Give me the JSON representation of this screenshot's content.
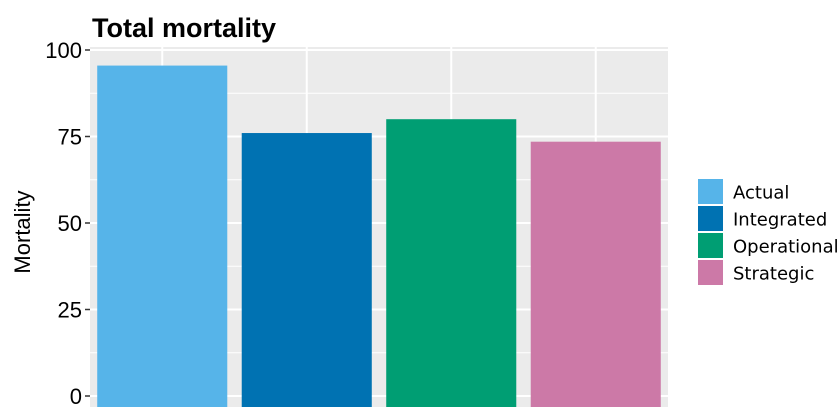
{
  "chart_data": {
    "type": "bar",
    "title": "Total mortality",
    "xlabel": "",
    "ylabel": "Mortality",
    "categories": [
      "Actual",
      "Integrated",
      "Operational",
      "Strategic"
    ],
    "values": [
      95.5,
      76,
      80,
      73.5
    ],
    "colors": [
      "#56b4e9",
      "#0072b2",
      "#009e73",
      "#cc79a7"
    ],
    "ylim": [
      0,
      100
    ],
    "yticks": [
      0,
      25,
      50,
      75,
      100
    ],
    "grid": true,
    "panel_background": "#ebebeb",
    "legend": {
      "position": "right",
      "entries": [
        "Actual",
        "Integrated",
        "Operational",
        "Strategic"
      ]
    }
  }
}
